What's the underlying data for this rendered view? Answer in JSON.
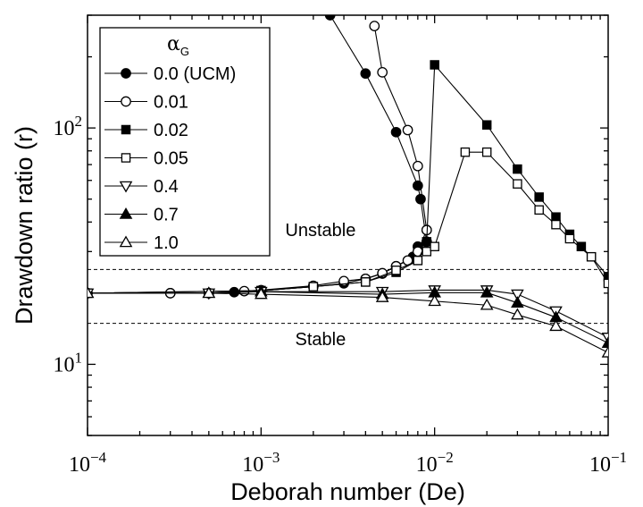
{
  "chart_data": {
    "type": "line",
    "xlabel": "Deborah number (De)",
    "ylabel": "Drawdown ratio (r)",
    "x_scale": "log",
    "y_scale": "log",
    "xlim": [
      0.0001,
      0.1
    ],
    "ylim": [
      5,
      300
    ],
    "x_ticks": [
      {
        "value": 0.0001,
        "base": "10",
        "exp": "−4"
      },
      {
        "value": 0.001,
        "base": "10",
        "exp": "−3"
      },
      {
        "value": 0.01,
        "base": "10",
        "exp": "−2"
      },
      {
        "value": 0.1,
        "base": "10",
        "exp": "−1"
      }
    ],
    "y_ticks": [
      {
        "value": 10,
        "base": "10",
        "exp": "1"
      },
      {
        "value": 100,
        "base": "10",
        "exp": "2"
      }
    ],
    "grid": false,
    "legend_placement": "top-left",
    "legend_title": {
      "symbol": "α",
      "sub": "G"
    },
    "annotations": [
      {
        "text": "Unstable",
        "x": 0.0022,
        "y": 37
      },
      {
        "text": "Stable",
        "x": 0.0022,
        "y": 12.8
      }
    ],
    "reference_lines": [
      {
        "y": 25.2,
        "style": "dashed"
      },
      {
        "y": 14.9,
        "style": "dashed"
      }
    ],
    "series": [
      {
        "name": "0.0 (UCM)",
        "marker": "circle",
        "filled": true,
        "points": [
          [
            0.0001,
            20
          ],
          [
            0.0003,
            20
          ],
          [
            0.0005,
            20
          ],
          [
            0.0007,
            20.2
          ],
          [
            0.001,
            20.5
          ],
          [
            0.002,
            21.3
          ],
          [
            0.003,
            22
          ],
          [
            0.004,
            23
          ],
          [
            0.005,
            24.2
          ],
          [
            0.006,
            26
          ],
          [
            0.0075,
            28.5
          ],
          [
            0.008,
            31.5
          ],
          [
            0.009,
            33
          ]
        ],
        "upper_branch": [
          [
            0.0025,
            300
          ],
          [
            0.004,
            170
          ],
          [
            0.006,
            96
          ],
          [
            0.008,
            57
          ],
          [
            0.0083,
            50
          ],
          [
            0.009,
            33
          ]
        ]
      },
      {
        "name": "0.01",
        "marker": "circle",
        "filled": false,
        "points": [
          [
            0.0001,
            20
          ],
          [
            0.0003,
            20
          ],
          [
            0.0005,
            20
          ],
          [
            0.0008,
            20.4
          ],
          [
            0.001,
            20.6
          ],
          [
            0.002,
            21.5
          ],
          [
            0.003,
            22.5
          ],
          [
            0.004,
            23
          ],
          [
            0.005,
            24.3
          ],
          [
            0.006,
            26
          ],
          [
            0.007,
            27.5
          ],
          [
            0.008,
            30
          ],
          [
            0.009,
            37
          ]
        ],
        "upper_branch": [
          [
            0.0045,
            270
          ],
          [
            0.005,
            172
          ],
          [
            0.007,
            98
          ],
          [
            0.008,
            69
          ],
          [
            0.009,
            37
          ]
        ]
      },
      {
        "name": "0.02",
        "marker": "square",
        "filled": true,
        "points": [
          [
            0.0001,
            20
          ],
          [
            0.001,
            20.5
          ],
          [
            0.002,
            21.3
          ],
          [
            0.004,
            22.3
          ],
          [
            0.006,
            24.5
          ],
          [
            0.008,
            27.5
          ],
          [
            0.009,
            33
          ],
          [
            0.01,
            185
          ],
          [
            0.02,
            103
          ],
          [
            0.03,
            67
          ],
          [
            0.04,
            51
          ],
          [
            0.05,
            42
          ],
          [
            0.06,
            35.5
          ],
          [
            0.07,
            31.5
          ],
          [
            0.08,
            28.5
          ],
          [
            0.1,
            23.5
          ]
        ]
      },
      {
        "name": "0.05",
        "marker": "square",
        "filled": false,
        "points": [
          [
            0.0001,
            20
          ],
          [
            0.001,
            20.5
          ],
          [
            0.002,
            21.3
          ],
          [
            0.004,
            22.3
          ],
          [
            0.006,
            25
          ],
          [
            0.008,
            27.5
          ],
          [
            0.009,
            30
          ],
          [
            0.01,
            31.5
          ],
          [
            0.015,
            79
          ],
          [
            0.02,
            79
          ],
          [
            0.03,
            58
          ],
          [
            0.04,
            45
          ],
          [
            0.05,
            39
          ],
          [
            0.06,
            34
          ],
          [
            0.08,
            28.5
          ],
          [
            0.1,
            22
          ]
        ]
      },
      {
        "name": "0.4",
        "marker": "triangle-down",
        "filled": false,
        "points": [
          [
            0.0001,
            20
          ],
          [
            0.0005,
            20
          ],
          [
            0.001,
            20.3
          ],
          [
            0.005,
            20.3
          ],
          [
            0.01,
            20.6
          ],
          [
            0.02,
            20.6
          ],
          [
            0.03,
            19.8
          ],
          [
            0.05,
            16.8
          ],
          [
            0.1,
            13
          ]
        ]
      },
      {
        "name": "0.7",
        "marker": "triangle-up",
        "filled": true,
        "points": [
          [
            0.0001,
            20
          ],
          [
            0.0005,
            20
          ],
          [
            0.001,
            20.3
          ],
          [
            0.005,
            19.8
          ],
          [
            0.01,
            20.1
          ],
          [
            0.02,
            20.1
          ],
          [
            0.03,
            18.2
          ],
          [
            0.05,
            15.8
          ],
          [
            0.1,
            12.3
          ]
        ]
      },
      {
        "name": "1.0",
        "marker": "triangle-up",
        "filled": false,
        "points": [
          [
            0.0001,
            20
          ],
          [
            0.0005,
            20
          ],
          [
            0.001,
            19.8
          ],
          [
            0.005,
            19.2
          ],
          [
            0.01,
            18.5
          ],
          [
            0.02,
            17.8
          ],
          [
            0.03,
            16.2
          ],
          [
            0.05,
            14.5
          ],
          [
            0.1,
            11.2
          ]
        ]
      }
    ]
  }
}
